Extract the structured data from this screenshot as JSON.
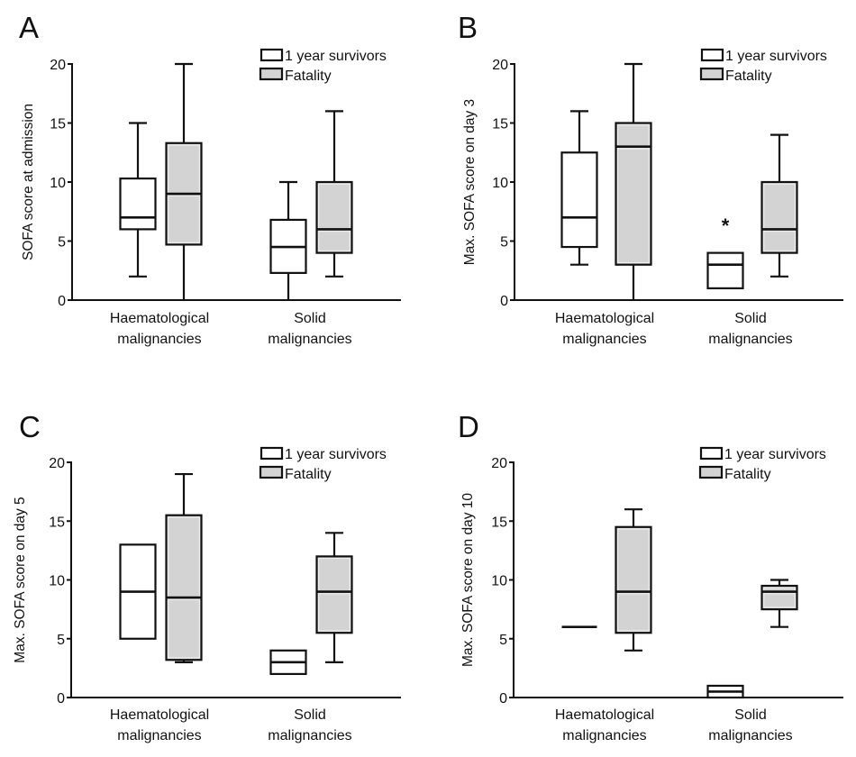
{
  "legend": {
    "survivors_label": "1 year survivors",
    "fatality_label": "Fatality"
  },
  "colors": {
    "survivors_fill": "#ffffff",
    "fatality_fill": "#d3d3d3",
    "stroke": "#111111"
  },
  "chart_data": [
    {
      "type": "box",
      "panel": "A",
      "title": "",
      "ylabel": "SOFA score at admission",
      "xlabel": "",
      "ylim": [
        0,
        20
      ],
      "yticks": [
        0,
        5,
        10,
        15,
        20
      ],
      "categories": [
        "Haematological\nmalignancies",
        "Solid\nmalignancies"
      ],
      "category_lines": [
        [
          "Haematological",
          "malignancies"
        ],
        [
          "Solid",
          "malignancies"
        ]
      ],
      "legend_position": "top-right",
      "series": [
        {
          "name": "1 year survivors",
          "boxes": [
            {
              "min": 2,
              "q1": 6,
              "median": 7,
              "q3": 10.3,
              "max": 15
            },
            {
              "min": 0,
              "q1": 2.3,
              "median": 4.5,
              "q3": 6.8,
              "max": 10
            }
          ]
        },
        {
          "name": "Fatality",
          "boxes": [
            {
              "min": 0,
              "q1": 4.7,
              "median": 9,
              "q3": 13.3,
              "max": 20
            },
            {
              "min": 2,
              "q1": 4,
              "median": 6,
              "q3": 10,
              "max": 16
            }
          ]
        }
      ],
      "annotations": []
    },
    {
      "type": "box",
      "panel": "B",
      "title": "",
      "ylabel": "Max. SOFA score on day 3",
      "xlabel": "",
      "ylim": [
        0,
        20
      ],
      "yticks": [
        0,
        5,
        10,
        15,
        20
      ],
      "categories": [
        "Haematological\nmalignancies",
        "Solid\nmalignancies"
      ],
      "category_lines": [
        [
          "Haematological",
          "malignancies"
        ],
        [
          "Solid",
          "malignancies"
        ]
      ],
      "legend_position": "top-right",
      "series": [
        {
          "name": "1 year survivors",
          "boxes": [
            {
              "min": 3,
              "q1": 4.5,
              "median": 7,
              "q3": 12.5,
              "max": 16
            },
            {
              "min": 1,
              "q1": 1,
              "median": 3,
              "q3": 4,
              "max": 4,
              "outliers": [
                6.5
              ]
            }
          ]
        },
        {
          "name": "Fatality",
          "boxes": [
            {
              "min": 0,
              "q1": 3,
              "median": 13,
              "q3": 15,
              "max": 20
            },
            {
              "min": 2,
              "q1": 4,
              "median": 6,
              "q3": 10,
              "max": 14
            }
          ]
        }
      ],
      "annotations": [
        {
          "text": "*",
          "category": 1,
          "series": 0,
          "y": 6.5
        }
      ]
    },
    {
      "type": "box",
      "panel": "C",
      "title": "",
      "ylabel": "Max. SOFA score on day 5",
      "xlabel": "",
      "ylim": [
        0,
        20
      ],
      "yticks": [
        0,
        5,
        10,
        15,
        20
      ],
      "categories": [
        "Haematological\nmalignancies",
        "Solid\nmalignancies"
      ],
      "category_lines": [
        [
          "Haematological",
          "malignancies"
        ],
        [
          "Solid",
          "malignancies"
        ]
      ],
      "legend_position": "top-right",
      "series": [
        {
          "name": "1 year survivors",
          "boxes": [
            {
              "min": 5,
              "q1": 5,
              "median": 9,
              "q3": 13,
              "max": 13
            },
            {
              "min": 2,
              "q1": 2,
              "median": 3,
              "q3": 4,
              "max": 4
            }
          ]
        },
        {
          "name": "Fatality",
          "boxes": [
            {
              "min": 3,
              "q1": 3.2,
              "median": 8.5,
              "q3": 15.5,
              "max": 19
            },
            {
              "min": 3,
              "q1": 5.5,
              "median": 9,
              "q3": 12,
              "max": 14
            }
          ]
        }
      ],
      "annotations": []
    },
    {
      "type": "box",
      "panel": "D",
      "title": "",
      "ylabel": "Max. SOFA score on day 10",
      "xlabel": "",
      "ylim": [
        0,
        20
      ],
      "yticks": [
        0,
        5,
        10,
        15,
        20
      ],
      "categories": [
        "Haematological\nmalignancies",
        "Solid\nmalignancies"
      ],
      "category_lines": [
        [
          "Haematological",
          "malignancies"
        ],
        [
          "Solid",
          "malignancies"
        ]
      ],
      "legend_position": "top-right",
      "series": [
        {
          "name": "1 year survivors",
          "boxes": [
            {
              "min": 6,
              "q1": 6,
              "median": 6,
              "q3": 6,
              "max": 6
            },
            {
              "min": 0,
              "q1": 0,
              "median": 0.5,
              "q3": 1,
              "max": 1
            }
          ]
        },
        {
          "name": "Fatality",
          "boxes": [
            {
              "min": 4,
              "q1": 5.5,
              "median": 9,
              "q3": 14.5,
              "max": 16
            },
            {
              "min": 6,
              "q1": 7.5,
              "median": 9,
              "q3": 9.5,
              "max": 10
            }
          ]
        }
      ],
      "annotations": []
    }
  ]
}
